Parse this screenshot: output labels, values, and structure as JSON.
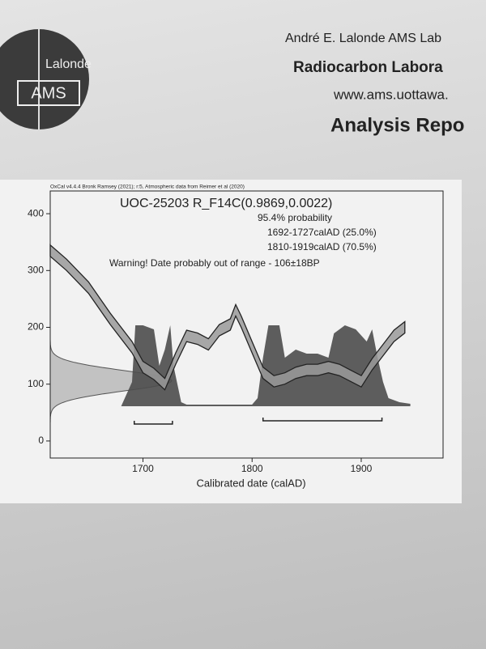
{
  "header": {
    "logo": [
      "Lalonde",
      "AMS"
    ],
    "lines": [
      "André E. Lalonde AMS Lab",
      "Radiocarbon Labora",
      "www.ams.uottawa.",
      "Analysis Repo"
    ]
  },
  "chart_data": {
    "type": "calibration",
    "credit": "OxCal v4.4.4 Bronk Ramsey (2021); r:5, Atmospheric data from Reimer et al (2020)",
    "title": "UOC-25203 R_F14C(0.9869,0.0022)",
    "annotations": [
      "95.4% probability",
      "1692-1727calAD (25.0%)",
      "1810-1919calAD (70.5%)",
      "Warning! Date probably out of range - 106±18BP"
    ],
    "xlabel": "Calibrated date (calAD)",
    "xlim": [
      1615,
      1975
    ],
    "xticks": [
      1700,
      1800,
      1900
    ],
    "ylim": [
      -30,
      440
    ],
    "yticks": [
      0,
      100,
      200,
      300,
      400
    ],
    "determination": {
      "value": 106,
      "error": 18
    },
    "curve": {
      "x": [
        1615,
        1630,
        1650,
        1670,
        1690,
        1700,
        1710,
        1720,
        1730,
        1740,
        1750,
        1760,
        1770,
        1780,
        1785,
        1790,
        1800,
        1810,
        1820,
        1830,
        1840,
        1850,
        1860,
        1870,
        1880,
        1890,
        1900,
        1910,
        1920,
        1930,
        1940
      ],
      "values": [
        335,
        310,
        270,
        215,
        165,
        130,
        118,
        100,
        145,
        185,
        180,
        170,
        195,
        205,
        230,
        210,
        165,
        120,
        105,
        110,
        120,
        125,
        125,
        130,
        125,
        115,
        105,
        135,
        160,
        185,
        200
      ],
      "error": 10,
      "color": "#9a9a9a"
    },
    "probability": {
      "x": [
        1680,
        1690,
        1693,
        1700,
        1710,
        1715,
        1720,
        1725,
        1728,
        1735,
        1740,
        1760,
        1780,
        1800,
        1805,
        1810,
        1815,
        1825,
        1830,
        1840,
        1850,
        1860,
        1870,
        1875,
        1885,
        1895,
        1905,
        1910,
        1915,
        1920,
        1925,
        1935,
        1945
      ],
      "values": [
        0,
        0.3,
        1,
        1,
        0.95,
        0.5,
        0.7,
        1,
        0.5,
        0.05,
        0.02,
        0.02,
        0.02,
        0.02,
        0.1,
        0.6,
        1,
        1,
        0.6,
        0.7,
        0.65,
        0.65,
        0.6,
        0.9,
        1,
        0.95,
        0.8,
        0.95,
        0.6,
        0.3,
        0.1,
        0.05,
        0.03
      ],
      "color": "#4d4d4d"
    },
    "ranges": [
      [
        1692,
        1727
      ],
      [
        1810,
        1919
      ]
    ]
  }
}
